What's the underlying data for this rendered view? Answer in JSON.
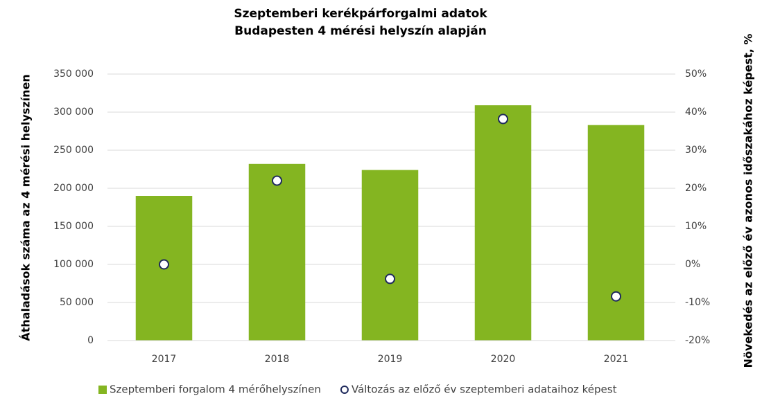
{
  "chart_data": {
    "type": "bar",
    "title": "Szeptemberi kerékpárforgalmi adatok",
    "subtitle": "Budapesten 4 mérési helyszín alapján",
    "ylabel": "Áthaladások száma az 4 mérési helyszínen",
    "y2label": "Növekedés az előző év azonos időszakához képest, %",
    "categories": [
      "2017",
      "2018",
      "2019",
      "2020",
      "2021"
    ],
    "series": [
      {
        "name": "Szeptemberi forgalom 4 mérőhelyszínen",
        "color": "#84b521",
        "values": [
          190000,
          232000,
          224000,
          309000,
          283000
        ]
      },
      {
        "name": "Változás az előző év szeptemberi adataihoz képest",
        "type": "scatter",
        "axis": "y2",
        "color": "#1f2a5c",
        "values": [
          0,
          22,
          -3.8,
          38.2,
          -8.4
        ]
      }
    ],
    "ylim": [
      0,
      350000
    ],
    "yticks": [
      0,
      {
        "value": 50000,
        "label": "50 000"
      },
      {
        "value": 100000,
        "label": "100 000"
      },
      {
        "value": 150000,
        "label": "150 000"
      },
      {
        "value": 200000,
        "label": "200 000"
      },
      {
        "value": 250000,
        "label": "250 000"
      },
      {
        "value": 300000,
        "label": "300 000"
      },
      {
        "value": 350000,
        "label": "350 000"
      }
    ],
    "y2lim": [
      -20,
      50
    ],
    "y2ticks": [
      {
        "value": -20,
        "label": "-20%"
      },
      {
        "value": -10,
        "label": "-10%"
      },
      {
        "value": 0,
        "label": "0%"
      },
      {
        "value": 10,
        "label": "10%"
      },
      {
        "value": 20,
        "label": "20%"
      },
      {
        "value": 30,
        "label": "30%"
      },
      {
        "value": 40,
        "label": "40%"
      },
      {
        "value": 50,
        "label": "50%"
      }
    ],
    "grid": true,
    "legend": "bottom"
  }
}
